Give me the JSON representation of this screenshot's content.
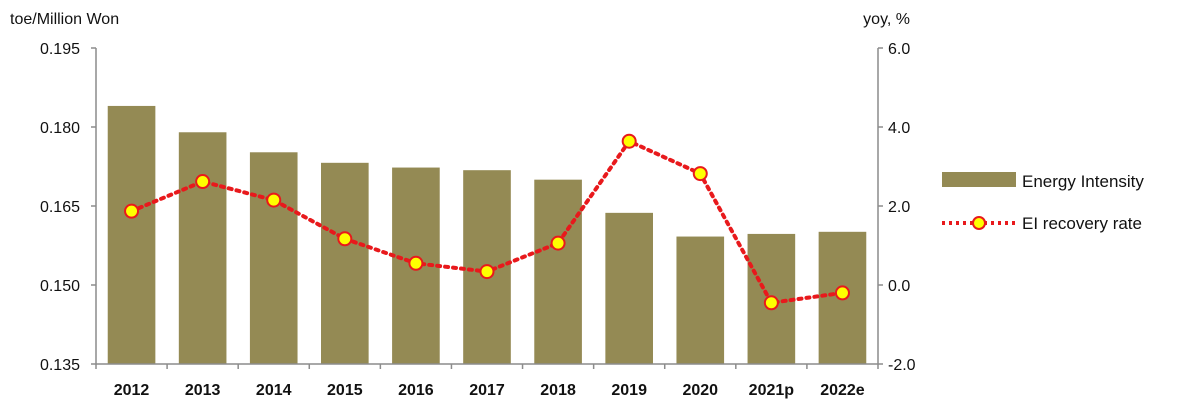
{
  "chart_data": {
    "type": "bar+line",
    "categories": [
      "2012",
      "2013",
      "2014",
      "2015",
      "2016",
      "2017",
      "2018",
      "2019",
      "2020",
      "2021p",
      "2022e"
    ],
    "series": [
      {
        "name": "Energy Intensity",
        "type": "bar",
        "axis": "left",
        "color": "#948a54",
        "values": [
          0.184,
          0.179,
          0.1752,
          0.1732,
          0.1723,
          0.1718,
          0.17,
          0.1637,
          0.1592,
          0.1597,
          0.1601
        ]
      },
      {
        "name": "EI recovery rate",
        "type": "line",
        "axis": "right",
        "color": "#e8191c",
        "marker_fill": "#ffff00",
        "values": [
          1.87,
          2.62,
          2.15,
          1.17,
          0.55,
          0.34,
          1.06,
          3.64,
          2.82,
          -0.45,
          -0.2
        ]
      }
    ],
    "y_left": {
      "label": "toe/Million Won",
      "range": [
        0.135,
        0.195
      ],
      "ticks": [
        "0.195",
        "0.180",
        "0.165",
        "0.150",
        "0.135"
      ]
    },
    "y_right": {
      "label": "yoy, %",
      "range": [
        -2.0,
        6.0
      ],
      "ticks": [
        "6.0",
        "4.0",
        "2.0",
        "0.0",
        "-2.0"
      ]
    },
    "grid": false,
    "legend_position": "right"
  }
}
